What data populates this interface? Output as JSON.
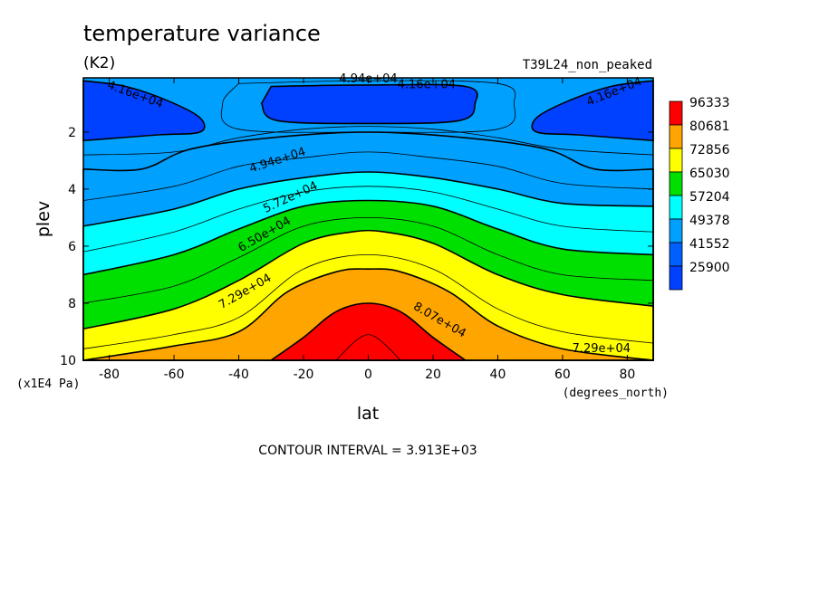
{
  "chart_data": {
    "type": "contour",
    "title": "temperature variance",
    "units": "(K2)",
    "case_label": "T39L24_non_peaked",
    "xlabel": "lat",
    "ylabel": "plev",
    "x_units": "(degrees_north)",
    "y_units": "(x1E4 Pa)",
    "x_ticks": [
      -80,
      -60,
      -40,
      -20,
      0,
      20,
      40,
      60,
      80
    ],
    "y_ticks": [
      2,
      4,
      6,
      8,
      10
    ],
    "xlim": [
      -88,
      88
    ],
    "ylim": [
      0.1,
      10
    ],
    "contour_interval_text": "CONTOUR INTERVAL = 3.913E+03",
    "legend": [
      {
        "label": "96333",
        "color": "#ff0000"
      },
      {
        "label": "80681",
        "color": "#ffa500"
      },
      {
        "label": "72856",
        "color": "#ffff00"
      },
      {
        "label": "65030",
        "color": "#00e000"
      },
      {
        "label": "57204",
        "color": "#00ffff"
      },
      {
        "label": "49378",
        "color": "#00a0ff"
      },
      {
        "label": "41552",
        "color": "#0060ff"
      },
      {
        "label": "25900",
        "color": "#0040ff"
      }
    ],
    "contour_labels": [
      "4.16e+04",
      "4.94e+04",
      "4.16e+04",
      "4.16e+04",
      "4.94e+04",
      "5.72e+04",
      "6.50e+04",
      "7.29e+04",
      "8.07e+04",
      "7.29e+04"
    ],
    "bands": [
      {
        "color": "#ff0000",
        "boundary": [
          [
            -30,
            10.0
          ],
          [
            -20,
            9.2
          ],
          [
            -10,
            8.3
          ],
          [
            0,
            8.0
          ],
          [
            10,
            8.3
          ],
          [
            20,
            9.2
          ],
          [
            30,
            10.0
          ]
        ]
      },
      {
        "color": "#ffa500",
        "boundary": [
          [
            -88,
            10.0
          ],
          [
            -60,
            9.5
          ],
          [
            -40,
            9.0
          ],
          [
            -25,
            7.6
          ],
          [
            -10,
            6.9
          ],
          [
            0,
            6.8
          ],
          [
            10,
            6.9
          ],
          [
            25,
            7.6
          ],
          [
            40,
            8.8
          ],
          [
            60,
            9.6
          ],
          [
            88,
            10.0
          ]
        ]
      },
      {
        "color": "#ffff00",
        "boundary": [
          [
            -88,
            8.9
          ],
          [
            -60,
            8.2
          ],
          [
            -40,
            7.2
          ],
          [
            -20,
            5.9
          ],
          [
            -5,
            5.5
          ],
          [
            5,
            5.5
          ],
          [
            20,
            5.9
          ],
          [
            40,
            7.0
          ],
          [
            60,
            7.7
          ],
          [
            88,
            8.1
          ]
        ]
      },
      {
        "color": "#00e000",
        "boundary": [
          [
            -88,
            7.0
          ],
          [
            -60,
            6.3
          ],
          [
            -40,
            5.4
          ],
          [
            -20,
            4.6
          ],
          [
            0,
            4.4
          ],
          [
            20,
            4.6
          ],
          [
            40,
            5.4
          ],
          [
            60,
            6.1
          ],
          [
            88,
            6.3
          ]
        ]
      },
      {
        "color": "#00ffff",
        "boundary": [
          [
            -88,
            5.3
          ],
          [
            -60,
            4.7
          ],
          [
            -40,
            4.0
          ],
          [
            -20,
            3.6
          ],
          [
            0,
            3.4
          ],
          [
            20,
            3.6
          ],
          [
            40,
            4.0
          ],
          [
            60,
            4.5
          ],
          [
            88,
            4.6
          ]
        ]
      },
      {
        "color": "#00a0ff",
        "boundary": [
          [
            -88,
            3.3
          ],
          [
            -70,
            3.3
          ],
          [
            -55,
            2.6
          ],
          [
            -30,
            2.2
          ],
          [
            0,
            2.0
          ],
          [
            30,
            2.2
          ],
          [
            55,
            2.6
          ],
          [
            70,
            3.3
          ],
          [
            88,
            3.3
          ]
        ]
      }
    ],
    "min_regions": [
      {
        "color": "#0040ff",
        "boundary": [
          [
            -88,
            0.2
          ],
          [
            -75,
            0.4
          ],
          [
            -62,
            0.9
          ],
          [
            -52,
            1.5
          ],
          [
            -52,
            2.0
          ],
          [
            -65,
            2.1
          ],
          [
            -88,
            2.3
          ]
        ]
      },
      {
        "color": "#0040ff",
        "boundary": [
          [
            88,
            0.2
          ],
          [
            75,
            0.4
          ],
          [
            62,
            0.9
          ],
          [
            52,
            1.5
          ],
          [
            52,
            2.0
          ],
          [
            65,
            2.1
          ],
          [
            88,
            2.3
          ]
        ]
      },
      {
        "color": "#0040ff",
        "boundary": [
          [
            -30,
            0.4
          ],
          [
            0,
            0.35
          ],
          [
            30,
            0.4
          ],
          [
            33,
            1.0
          ],
          [
            28,
            1.6
          ],
          [
            0,
            1.7
          ],
          [
            -28,
            1.6
          ],
          [
            -33,
            1.0
          ]
        ]
      }
    ],
    "thin_contours": [
      [
        [
          -88,
          9.6
        ],
        [
          -60,
          9.1
        ],
        [
          -40,
          8.5
        ],
        [
          -20,
          6.8
        ],
        [
          0,
          6.3
        ],
        [
          20,
          6.8
        ],
        [
          40,
          8.2
        ],
        [
          60,
          9.0
        ],
        [
          88,
          9.4
        ]
      ],
      [
        [
          -88,
          8.0
        ],
        [
          -60,
          7.4
        ],
        [
          -40,
          6.4
        ],
        [
          -20,
          5.3
        ],
        [
          0,
          5.0
        ],
        [
          20,
          5.3
        ],
        [
          40,
          6.3
        ],
        [
          60,
          7.0
        ],
        [
          88,
          7.2
        ]
      ],
      [
        [
          -88,
          6.2
        ],
        [
          -60,
          5.5
        ],
        [
          -40,
          4.7
        ],
        [
          -20,
          4.1
        ],
        [
          0,
          3.9
        ],
        [
          20,
          4.1
        ],
        [
          40,
          4.7
        ],
        [
          60,
          5.3
        ],
        [
          88,
          5.5
        ]
      ],
      [
        [
          -88,
          4.4
        ],
        [
          -60,
          3.9
        ],
        [
          -40,
          3.2
        ],
        [
          -20,
          2.9
        ],
        [
          0,
          2.7
        ],
        [
          20,
          2.9
        ],
        [
          40,
          3.2
        ],
        [
          60,
          3.8
        ],
        [
          88,
          4.0
        ]
      ],
      [
        [
          -88,
          2.8
        ],
        [
          -60,
          2.7
        ],
        [
          -40,
          2.2
        ],
        [
          -20,
          1.9
        ],
        [
          0,
          1.8
        ],
        [
          20,
          1.9
        ],
        [
          40,
          2.2
        ],
        [
          60,
          2.6
        ],
        [
          88,
          2.8
        ]
      ],
      [
        [
          -40,
          0.3
        ],
        [
          0,
          0.2
        ],
        [
          40,
          0.3
        ],
        [
          45,
          1.0
        ],
        [
          40,
          1.9
        ],
        [
          0,
          2.0
        ],
        [
          -40,
          1.9
        ],
        [
          -45,
          1.0
        ],
        [
          -40,
          0.3
        ]
      ],
      [
        [
          -10,
          10.0
        ],
        [
          0,
          9.1
        ],
        [
          10,
          10.0
        ]
      ]
    ]
  }
}
